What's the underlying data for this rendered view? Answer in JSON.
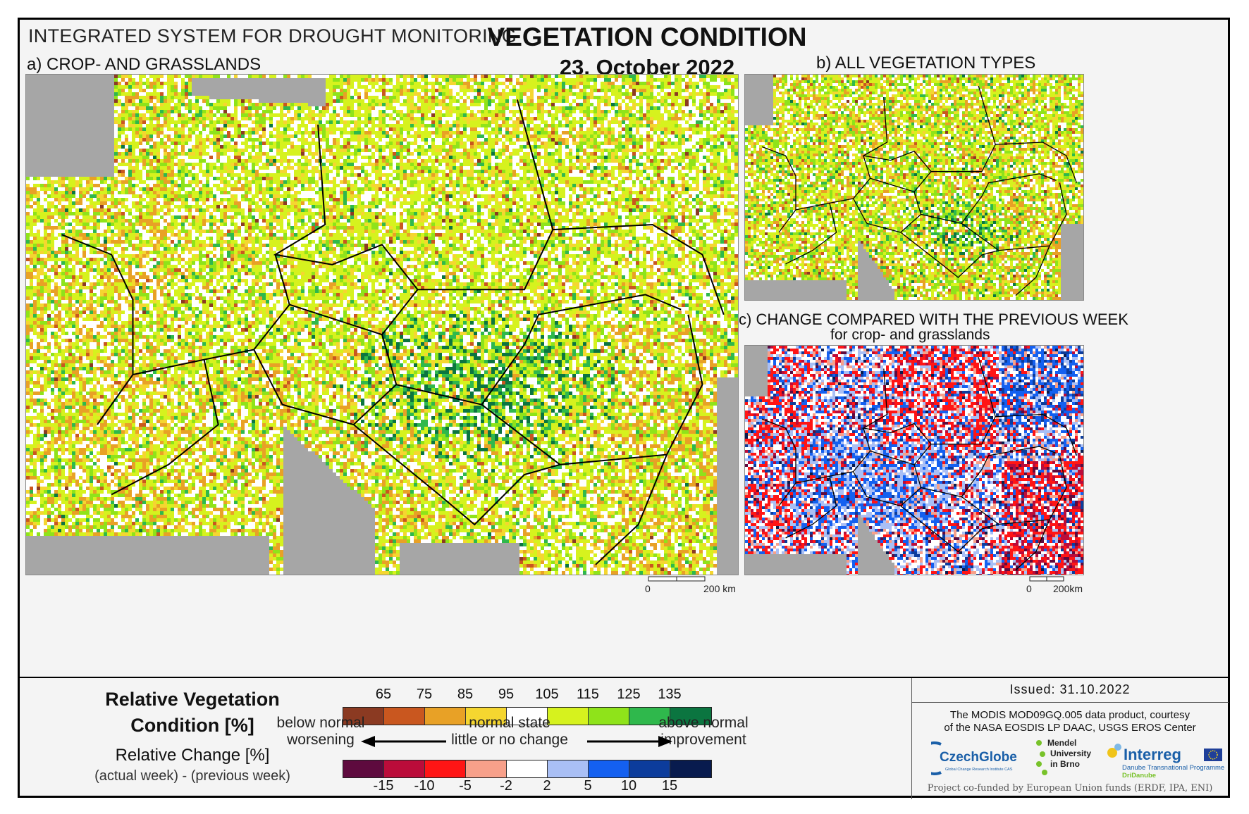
{
  "header": {
    "system": "INTEGRATED SYSTEM FOR DROUGHT MONITORING",
    "title": "VEGETATION CONDITION",
    "date": "23. October 2022"
  },
  "panels": {
    "a": {
      "label": "a) CROP- AND GRASSLANDS",
      "scale_zero": "0",
      "scale_label": "200 km"
    },
    "b": {
      "label": "b) ALL VEGETATION TYPES"
    },
    "c": {
      "label": "c) CHANGE COMPARED WITH THE PREVIOUS WEEK",
      "sublabel": "for crop- and grasslands",
      "scale_zero": "0",
      "scale_label": "200km"
    }
  },
  "legend": {
    "title_line1": "Relative Vegetation",
    "title_line2": "Condition [%]",
    "change_title": "Relative Change [%]",
    "change_sub": "(actual week) - (previous week)",
    "vc_ticks": [
      "65",
      "75",
      "85",
      "95",
      "105",
      "115",
      "125",
      "135"
    ],
    "vc_colors": [
      "#8b3a22",
      "#c9571f",
      "#e8a126",
      "#f5d630",
      "#ffffff",
      "#d6f21e",
      "#8fe31a",
      "#2fb84c",
      "#0b7540"
    ],
    "change_ticks": [
      "-15",
      "-10",
      "-5",
      "-2",
      "2",
      "5",
      "10",
      "15"
    ],
    "change_colors": [
      "#5e0a3e",
      "#bb0c3a",
      "#ff1515",
      "#f7a08a",
      "#ffffff",
      "#a9bff5",
      "#1460f0",
      "#0c3c9c",
      "#081b4e"
    ],
    "left_top": "below normal",
    "left_bottom": "worsening",
    "mid_top": "normal state",
    "mid_bottom": "little or no change",
    "right_top": "above normal",
    "right_bottom": "improvement"
  },
  "info": {
    "issued": "Issued: 31.10.2022",
    "credit_line1": "The MODIS MOD09GQ.005 data product, courtesy",
    "credit_line2": "of the NASA EOSDIS LP DAAC, USGS EROS Center",
    "funded": "Project co-funded by European Union funds (ERDF, IPA, ENI)"
  },
  "logos": {
    "czechglobe": "CzechGlobe",
    "czechglobe_sub": "Global Change Research Institute CAS",
    "mendel_1": "Mendel",
    "mendel_2": "University",
    "mendel_3": "in Brno",
    "interreg": "Interreg",
    "interreg_sub1": "Danube Transnational Programme",
    "interreg_sub2": "DriDanube"
  },
  "colors": {
    "sea": "#a6a6a6",
    "border": "#000000"
  }
}
